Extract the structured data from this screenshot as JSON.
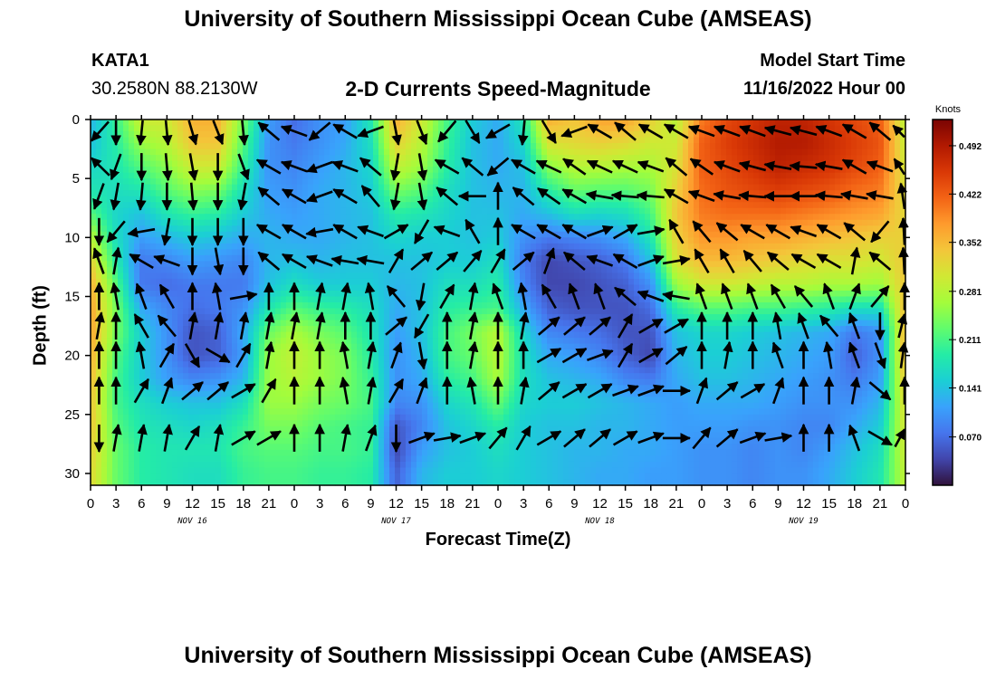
{
  "page": {
    "title": "University of Southern Mississippi Ocean Cube (AMSEAS)",
    "footer_title": "University of Southern Mississippi Ocean Cube (AMSEAS)",
    "station": "KATA1",
    "coords": "30.2580N  88.2130W",
    "model_start_label": "Model Start Time",
    "model_start_value": "11/16/2022 Hour 00"
  },
  "chart_data": {
    "type": "heatmap",
    "title": "2-D Currents Speed-Magnitude",
    "xlabel": "Forecast Time(Z)",
    "ylabel": "Depth (ft)",
    "x_hours_range": [
      0,
      96
    ],
    "x_tick_labels": [
      "0",
      "3",
      "6",
      "9",
      "12",
      "15",
      "18",
      "21",
      "0",
      "3",
      "6",
      "9",
      "12",
      "15",
      "18",
      "21",
      "0",
      "3",
      "6",
      "9",
      "12",
      "15",
      "18",
      "21",
      "0",
      "3",
      "6",
      "9",
      "12",
      "15",
      "18",
      "21",
      "0"
    ],
    "date_labels": [
      {
        "text": "NOV 16",
        "hour": 12
      },
      {
        "text": "NOV 17",
        "hour": 36
      },
      {
        "text": "NOV 18",
        "hour": 60
      },
      {
        "text": "NOV 19",
        "hour": 84
      }
    ],
    "y_range": [
      0,
      31
    ],
    "y_ticks": [
      0,
      5,
      10,
      15,
      20,
      25,
      30
    ],
    "y_inverted": true,
    "colorbar": {
      "unit_label": "Knots",
      "min": 0.0,
      "max": 0.53,
      "tick_values": [
        0.492,
        0.422,
        0.352,
        0.281,
        0.211,
        0.141,
        0.07
      ],
      "tick_labels": [
        "0.492",
        "0.422",
        "0.352",
        "0.281",
        "0.211",
        "0.141",
        "0.070"
      ]
    },
    "colormap": [
      "#30123b",
      "#4145ab",
      "#4675ed",
      "#39a2fc",
      "#1bcfd4",
      "#24eca6",
      "#61fc6c",
      "#a4fc3b",
      "#d1e834",
      "#f3c63a",
      "#fe9b2d",
      "#f36315",
      "#d93806",
      "#b11901",
      "#7a0403"
    ],
    "grid_rows_depths_ft": [
      0,
      2,
      4,
      6,
      8,
      10,
      12,
      14,
      16,
      18,
      20,
      22,
      24,
      26,
      28,
      30
    ],
    "grid_cols_hours": [
      0,
      3,
      6,
      9,
      12,
      15,
      18,
      21,
      24,
      27,
      30,
      33,
      36,
      39,
      42,
      45,
      48,
      51,
      54,
      57,
      60,
      63,
      66,
      69,
      72,
      75,
      78,
      81,
      84,
      87,
      90,
      93,
      96
    ],
    "speed_knots": [
      [
        0.13,
        0.2,
        0.3,
        0.3,
        0.36,
        0.36,
        0.24,
        0.11,
        0.07,
        0.1,
        0.11,
        0.18,
        0.36,
        0.3,
        0.21,
        0.15,
        0.12,
        0.18,
        0.36,
        0.34,
        0.37,
        0.37,
        0.33,
        0.28,
        0.4,
        0.44,
        0.46,
        0.48,
        0.48,
        0.46,
        0.44,
        0.42,
        0.28
      ],
      [
        0.14,
        0.19,
        0.26,
        0.28,
        0.34,
        0.34,
        0.22,
        0.1,
        0.08,
        0.1,
        0.12,
        0.17,
        0.33,
        0.28,
        0.2,
        0.14,
        0.12,
        0.16,
        0.31,
        0.32,
        0.33,
        0.32,
        0.3,
        0.3,
        0.42,
        0.45,
        0.47,
        0.49,
        0.49,
        0.47,
        0.45,
        0.43,
        0.29
      ],
      [
        0.16,
        0.18,
        0.22,
        0.25,
        0.3,
        0.3,
        0.2,
        0.1,
        0.09,
        0.11,
        0.13,
        0.16,
        0.29,
        0.26,
        0.19,
        0.14,
        0.12,
        0.14,
        0.25,
        0.28,
        0.28,
        0.27,
        0.27,
        0.31,
        0.42,
        0.44,
        0.46,
        0.48,
        0.47,
        0.46,
        0.44,
        0.42,
        0.3
      ],
      [
        0.18,
        0.17,
        0.18,
        0.22,
        0.25,
        0.24,
        0.17,
        0.11,
        0.1,
        0.12,
        0.13,
        0.15,
        0.24,
        0.22,
        0.17,
        0.14,
        0.13,
        0.13,
        0.19,
        0.23,
        0.22,
        0.22,
        0.24,
        0.33,
        0.41,
        0.43,
        0.44,
        0.45,
        0.44,
        0.43,
        0.41,
        0.4,
        0.31
      ],
      [
        0.22,
        0.16,
        0.14,
        0.18,
        0.2,
        0.19,
        0.15,
        0.12,
        0.11,
        0.12,
        0.13,
        0.14,
        0.19,
        0.18,
        0.16,
        0.14,
        0.14,
        0.12,
        0.14,
        0.17,
        0.16,
        0.17,
        0.21,
        0.34,
        0.4,
        0.41,
        0.41,
        0.41,
        0.4,
        0.39,
        0.38,
        0.37,
        0.32
      ],
      [
        0.28,
        0.17,
        0.11,
        0.13,
        0.15,
        0.14,
        0.12,
        0.13,
        0.12,
        0.12,
        0.13,
        0.14,
        0.16,
        0.15,
        0.15,
        0.14,
        0.15,
        0.1,
        0.08,
        0.09,
        0.1,
        0.12,
        0.18,
        0.33,
        0.38,
        0.38,
        0.37,
        0.37,
        0.36,
        0.35,
        0.34,
        0.33,
        0.33
      ],
      [
        0.33,
        0.19,
        0.08,
        0.09,
        0.11,
        0.1,
        0.09,
        0.13,
        0.14,
        0.13,
        0.14,
        0.14,
        0.14,
        0.14,
        0.15,
        0.15,
        0.17,
        0.08,
        0.04,
        0.05,
        0.06,
        0.08,
        0.14,
        0.31,
        0.35,
        0.35,
        0.34,
        0.33,
        0.32,
        0.31,
        0.31,
        0.3,
        0.34
      ],
      [
        0.36,
        0.22,
        0.08,
        0.07,
        0.08,
        0.08,
        0.08,
        0.14,
        0.17,
        0.15,
        0.15,
        0.15,
        0.13,
        0.14,
        0.17,
        0.17,
        0.19,
        0.09,
        0.04,
        0.04,
        0.05,
        0.06,
        0.1,
        0.26,
        0.3,
        0.3,
        0.29,
        0.28,
        0.28,
        0.27,
        0.27,
        0.26,
        0.34
      ],
      [
        0.37,
        0.24,
        0.12,
        0.09,
        0.07,
        0.08,
        0.1,
        0.18,
        0.22,
        0.2,
        0.19,
        0.17,
        0.12,
        0.14,
        0.19,
        0.2,
        0.21,
        0.12,
        0.06,
        0.05,
        0.05,
        0.05,
        0.07,
        0.19,
        0.22,
        0.22,
        0.21,
        0.21,
        0.2,
        0.19,
        0.17,
        0.17,
        0.35
      ],
      [
        0.37,
        0.24,
        0.15,
        0.1,
        0.05,
        0.06,
        0.12,
        0.23,
        0.27,
        0.24,
        0.22,
        0.18,
        0.11,
        0.14,
        0.21,
        0.24,
        0.28,
        0.16,
        0.09,
        0.08,
        0.07,
        0.05,
        0.05,
        0.14,
        0.16,
        0.16,
        0.15,
        0.14,
        0.13,
        0.12,
        0.08,
        0.1,
        0.36
      ],
      [
        0.36,
        0.22,
        0.15,
        0.1,
        0.05,
        0.06,
        0.11,
        0.26,
        0.29,
        0.26,
        0.24,
        0.19,
        0.1,
        0.13,
        0.21,
        0.23,
        0.28,
        0.17,
        0.12,
        0.11,
        0.09,
        0.06,
        0.04,
        0.13,
        0.15,
        0.15,
        0.14,
        0.13,
        0.12,
        0.11,
        0.06,
        0.1,
        0.36
      ],
      [
        0.35,
        0.21,
        0.15,
        0.11,
        0.09,
        0.1,
        0.13,
        0.26,
        0.28,
        0.26,
        0.24,
        0.2,
        0.1,
        0.12,
        0.19,
        0.21,
        0.27,
        0.17,
        0.14,
        0.13,
        0.12,
        0.09,
        0.08,
        0.12,
        0.14,
        0.14,
        0.13,
        0.12,
        0.11,
        0.1,
        0.08,
        0.11,
        0.34
      ],
      [
        0.34,
        0.21,
        0.17,
        0.15,
        0.14,
        0.14,
        0.17,
        0.26,
        0.26,
        0.24,
        0.23,
        0.21,
        0.09,
        0.1,
        0.16,
        0.18,
        0.23,
        0.16,
        0.15,
        0.15,
        0.14,
        0.13,
        0.12,
        0.11,
        0.12,
        0.12,
        0.12,
        0.11,
        0.1,
        0.1,
        0.1,
        0.13,
        0.32
      ],
      [
        0.34,
        0.22,
        0.18,
        0.17,
        0.16,
        0.17,
        0.2,
        0.24,
        0.24,
        0.22,
        0.21,
        0.2,
        0.05,
        0.09,
        0.14,
        0.16,
        0.19,
        0.15,
        0.14,
        0.14,
        0.13,
        0.13,
        0.12,
        0.11,
        0.11,
        0.11,
        0.1,
        0.1,
        0.09,
        0.09,
        0.12,
        0.15,
        0.31
      ],
      [
        0.33,
        0.23,
        0.19,
        0.18,
        0.18,
        0.18,
        0.21,
        0.22,
        0.22,
        0.21,
        0.21,
        0.2,
        0.04,
        0.11,
        0.14,
        0.15,
        0.17,
        0.15,
        0.14,
        0.13,
        0.13,
        0.12,
        0.12,
        0.11,
        0.1,
        0.1,
        0.09,
        0.1,
        0.09,
        0.11,
        0.14,
        0.17,
        0.3
      ],
      [
        0.32,
        0.23,
        0.19,
        0.18,
        0.17,
        0.17,
        0.2,
        0.21,
        0.21,
        0.2,
        0.2,
        0.19,
        0.06,
        0.13,
        0.15,
        0.15,
        0.16,
        0.15,
        0.14,
        0.13,
        0.12,
        0.12,
        0.11,
        0.11,
        0.1,
        0.1,
        0.09,
        0.1,
        0.1,
        0.12,
        0.15,
        0.18,
        0.29
      ]
    ],
    "arrows": {
      "hours": [
        1,
        3,
        6,
        9,
        12,
        15,
        18,
        21,
        24,
        27,
        30,
        33,
        36,
        39,
        42,
        45,
        48,
        51,
        54,
        57,
        60,
        63,
        66,
        69,
        72,
        75,
        78,
        81,
        84,
        87,
        90,
        93,
        96
      ],
      "depths_ft": [
        1,
        4,
        6.5,
        9.5,
        12,
        15,
        17.5,
        20,
        23,
        27
      ],
      "note": "unit direction vectors per arrow (dx east-ish, dy up-ish); estimated from the image"
    },
    "arrow_dirs_deg": [
      [
        225,
        270,
        265,
        275,
        285,
        290,
        275,
        140,
        160,
        220,
        150,
        200,
        280,
        290,
        230,
        300,
        210,
        265,
        300,
        200,
        150,
        140,
        150,
        150,
        160,
        160,
        160,
        165,
        165,
        160,
        150,
        140,
        155
      ],
      [
        140,
        250,
        270,
        275,
        280,
        270,
        290,
        150,
        160,
        200,
        160,
        140,
        260,
        280,
        150,
        140,
        220,
        150,
        155,
        145,
        155,
        155,
        160,
        140,
        145,
        160,
        165,
        170,
        175,
        170,
        150,
        160,
        145
      ],
      [
        250,
        260,
        265,
        270,
        275,
        270,
        260,
        140,
        150,
        200,
        150,
        130,
        260,
        280,
        140,
        180,
        90,
        140,
        145,
        150,
        170,
        175,
        175,
        150,
        160,
        170,
        175,
        180,
        180,
        175,
        170,
        170,
        110
      ],
      [
        270,
        230,
        190,
        260,
        270,
        270,
        270,
        150,
        150,
        190,
        150,
        160,
        30,
        240,
        160,
        120,
        90,
        150,
        150,
        150,
        20,
        30,
        10,
        120,
        130,
        140,
        150,
        150,
        160,
        150,
        140,
        230,
        100
      ],
      [
        110,
        80,
        150,
        160,
        270,
        280,
        270,
        140,
        150,
        160,
        170,
        170,
        60,
        40,
        40,
        50,
        60,
        40,
        70,
        140,
        160,
        150,
        20,
        10,
        120,
        120,
        130,
        140,
        150,
        150,
        80,
        140,
        100
      ],
      [
        90,
        100,
        110,
        120,
        90,
        100,
        10,
        90,
        90,
        80,
        80,
        100,
        130,
        260,
        60,
        80,
        110,
        100,
        120,
        110,
        110,
        140,
        160,
        170,
        110,
        110,
        110,
        120,
        130,
        110,
        70,
        50,
        90
      ],
      [
        80,
        90,
        120,
        130,
        80,
        80,
        80,
        80,
        80,
        80,
        90,
        90,
        40,
        240,
        90,
        80,
        90,
        80,
        40,
        40,
        40,
        60,
        30,
        30,
        90,
        90,
        90,
        100,
        110,
        130,
        110,
        270,
        60
      ],
      [
        90,
        90,
        100,
        60,
        300,
        330,
        60,
        80,
        90,
        90,
        100,
        80,
        70,
        280,
        90,
        80,
        90,
        90,
        30,
        30,
        20,
        60,
        30,
        40,
        90,
        80,
        90,
        110,
        90,
        100,
        110,
        290,
        70
      ],
      [
        90,
        90,
        60,
        70,
        40,
        40,
        30,
        60,
        90,
        90,
        100,
        80,
        60,
        70,
        90,
        100,
        90,
        80,
        40,
        30,
        30,
        20,
        20,
        0,
        70,
        40,
        30,
        70,
        90,
        90,
        80,
        320,
        90
      ],
      [
        270,
        80,
        80,
        80,
        60,
        80,
        30,
        30,
        90,
        90,
        80,
        70,
        270,
        20,
        10,
        20,
        50,
        60,
        30,
        40,
        40,
        30,
        20,
        0,
        50,
        40,
        20,
        10,
        90,
        90,
        110,
        330,
        40
      ]
    ]
  }
}
